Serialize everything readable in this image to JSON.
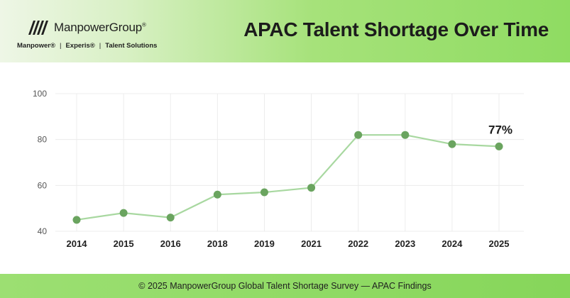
{
  "header": {
    "brand_name": "ManpowerGroup",
    "brand_reg": "®",
    "sub_brands": [
      "Manpower®",
      "Experis®",
      "Talent Solutions"
    ],
    "title": "APAC Talent Shortage Over Time"
  },
  "colors": {
    "line": "#a8d8a0",
    "point": "#6aa45f",
    "header_gradient_end": "#8fdc62",
    "footer": "#86d65a"
  },
  "chart_data": {
    "type": "line",
    "title": "APAC Talent Shortage Over Time",
    "categories": [
      "2014",
      "2015",
      "2016",
      "2018",
      "2019",
      "2021",
      "2022",
      "2023",
      "2024",
      "2025"
    ],
    "series": [
      {
        "values": [
          45,
          48,
          46,
          56,
          57,
          59,
          82,
          82,
          78,
          77
        ]
      }
    ],
    "ylim": [
      40,
      100
    ],
    "yticks": [
      40,
      60,
      80,
      100
    ],
    "grid": true,
    "annotations": [
      {
        "category": "2025",
        "text": "77%"
      }
    ],
    "xlabel": "",
    "ylabel": ""
  },
  "footer": {
    "text": "© 2025 ManpowerGroup Global Talent Shortage Survey — APAC Findings"
  }
}
